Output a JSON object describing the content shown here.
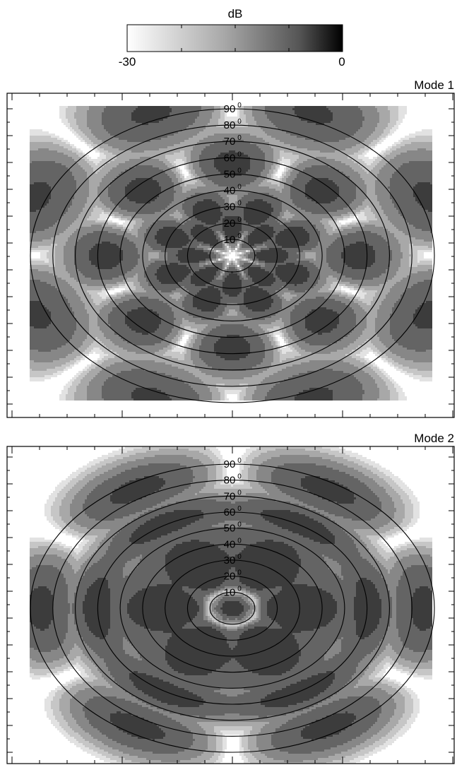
{
  "colorbar": {
    "title": "dB",
    "min_label": "-30",
    "max_label": "0",
    "min": -30,
    "max": 0,
    "colormap": "grayscale, white (-30) to black (0)"
  },
  "chart_data": [
    {
      "type": "heatmap",
      "title": "Mode 1",
      "description_of_field": "far-field radiation intensity in dB on a polar-projection map",
      "value_range_db": [
        -30,
        0
      ],
      "contour_levels_db": [
        -30,
        -25,
        -20,
        -15,
        -10,
        -5
      ],
      "null_at_center": true,
      "lobe_elevations_deg": [
        15,
        28,
        45
      ],
      "lobe_azimuth_count": 8,
      "elevation_rings_deg": [
        10,
        20,
        30,
        40,
        50,
        60,
        70,
        80,
        90
      ],
      "ring_labels": [
        "10",
        "20",
        "30",
        "40",
        "50",
        "60",
        "70",
        "80",
        "90"
      ],
      "ring_label_superscript": "0",
      "grid": false
    },
    {
      "type": "heatmap",
      "title": "Mode 2",
      "description_of_field": "far-field radiation intensity in dB on a polar-projection map",
      "value_range_db": [
        -30,
        0
      ],
      "contour_levels_db": [
        -30,
        -25,
        -20,
        -15,
        -10,
        -5
      ],
      "peak_at_center": true,
      "lobe_elevations_deg": [
        0,
        30,
        55
      ],
      "lobe_azimuth_count": 6,
      "elevation_rings_deg": [
        10,
        20,
        30,
        40,
        50,
        60,
        70,
        80,
        90
      ],
      "ring_labels": [
        "10",
        "20",
        "30",
        "40",
        "50",
        "60",
        "70",
        "80",
        "90"
      ],
      "ring_label_superscript": "0",
      "grid": false
    }
  ]
}
